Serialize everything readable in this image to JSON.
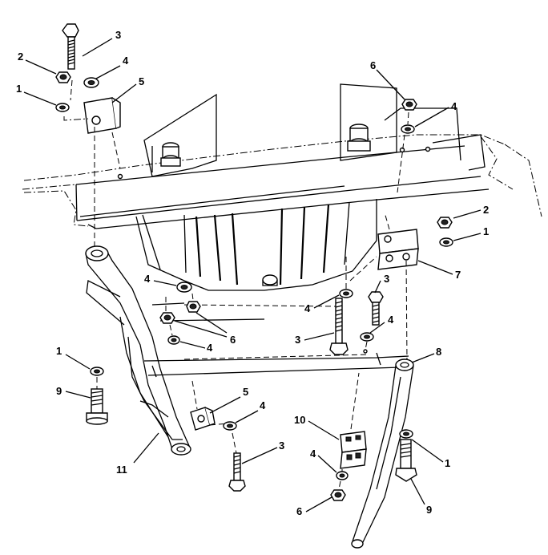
{
  "callouts": [
    {
      "id": "c1a",
      "text": "1"
    },
    {
      "id": "c2a",
      "text": "2"
    },
    {
      "id": "c3a",
      "text": "3"
    },
    {
      "id": "c4a",
      "text": "4"
    },
    {
      "id": "c5a",
      "text": "5"
    },
    {
      "id": "c6a",
      "text": "6"
    },
    {
      "id": "c4b",
      "text": "4"
    },
    {
      "id": "c2b",
      "text": "2"
    },
    {
      "id": "c1b",
      "text": "1"
    },
    {
      "id": "c7",
      "text": "7"
    },
    {
      "id": "c3b",
      "text": "3"
    },
    {
      "id": "c4c",
      "text": "4"
    },
    {
      "id": "c4d",
      "text": "4"
    },
    {
      "id": "c6b",
      "text": "6"
    },
    {
      "id": "c4e",
      "text": "4"
    },
    {
      "id": "c3c",
      "text": "3"
    },
    {
      "id": "c4f",
      "text": "4"
    },
    {
      "id": "c8",
      "text": "8"
    },
    {
      "id": "c1c",
      "text": "1"
    },
    {
      "id": "c9a",
      "text": "9"
    },
    {
      "id": "c5b",
      "text": "5"
    },
    {
      "id": "c4g",
      "text": "4"
    },
    {
      "id": "c10",
      "text": "10"
    },
    {
      "id": "c3d",
      "text": "3"
    },
    {
      "id": "c11",
      "text": "11"
    },
    {
      "id": "c4h",
      "text": "4"
    },
    {
      "id": "c6c",
      "text": "6"
    },
    {
      "id": "c1d",
      "text": "1"
    },
    {
      "id": "c9b",
      "text": "9"
    }
  ]
}
